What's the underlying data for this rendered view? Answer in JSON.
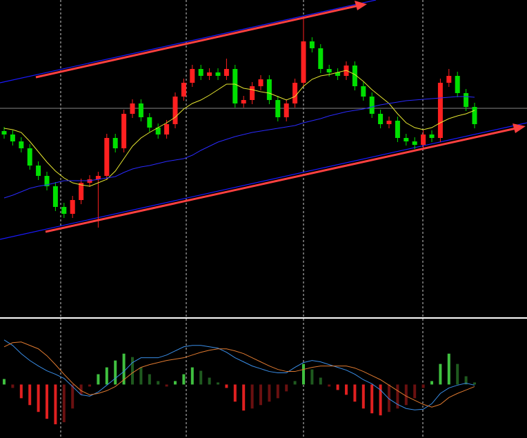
{
  "chart_data": [
    {
      "type": "candlestick",
      "ylim": [
        0,
        460
      ],
      "up_color": "#ff2020",
      "down_color": "#00e000",
      "ohlc": [
        [
          270,
          276,
          259,
          265
        ],
        [
          265,
          271,
          249,
          255
        ],
        [
          255,
          261,
          239,
          245
        ],
        [
          245,
          251,
          214,
          220
        ],
        [
          220,
          226,
          199,
          205
        ],
        [
          205,
          211,
          184,
          190
        ],
        [
          190,
          196,
          154,
          160
        ],
        [
          160,
          166,
          144,
          150
        ],
        [
          150,
          176,
          144,
          170
        ],
        [
          170,
          201,
          164,
          195
        ],
        [
          195,
          206,
          189,
          200
        ],
        [
          200,
          211,
          130,
          205
        ],
        [
          205,
          266,
          199,
          260
        ],
        [
          260,
          266,
          239,
          245
        ],
        [
          245,
          301,
          239,
          295
        ],
        [
          295,
          316,
          289,
          310
        ],
        [
          310,
          316,
          284,
          290
        ],
        [
          290,
          296,
          269,
          275
        ],
        [
          275,
          281,
          259,
          265
        ],
        [
          265,
          286,
          259,
          280
        ],
        [
          280,
          326,
          274,
          320
        ],
        [
          320,
          346,
          314,
          340
        ],
        [
          340,
          366,
          334,
          360
        ],
        [
          360,
          366,
          344,
          350
        ],
        [
          350,
          361,
          344,
          355
        ],
        [
          355,
          361,
          344,
          350
        ],
        [
          350,
          375,
          344,
          360
        ],
        [
          360,
          366,
          304,
          310
        ],
        [
          310,
          321,
          304,
          315
        ],
        [
          315,
          341,
          309,
          335
        ],
        [
          335,
          351,
          329,
          345
        ],
        [
          345,
          351,
          309,
          315
        ],
        [
          315,
          321,
          284,
          290
        ],
        [
          290,
          316,
          284,
          310
        ],
        [
          310,
          346,
          304,
          340
        ],
        [
          340,
          435,
          334,
          400
        ],
        [
          400,
          406,
          384,
          390
        ],
        [
          390,
          396,
          354,
          360
        ],
        [
          360,
          366,
          349,
          355
        ],
        [
          355,
          361,
          344,
          350
        ],
        [
          350,
          371,
          344,
          365
        ],
        [
          365,
          371,
          329,
          335
        ],
        [
          335,
          341,
          314,
          320
        ],
        [
          320,
          326,
          289,
          295
        ],
        [
          295,
          301,
          274,
          280
        ],
        [
          280,
          291,
          274,
          285
        ],
        [
          285,
          291,
          254,
          260
        ],
        [
          260,
          266,
          249,
          255
        ],
        [
          255,
          261,
          244,
          250
        ],
        [
          250,
          271,
          244,
          265
        ],
        [
          265,
          271,
          254,
          260
        ],
        [
          260,
          346,
          254,
          340
        ],
        [
          340,
          360,
          334,
          350
        ],
        [
          350,
          356,
          319,
          325
        ],
        [
          325,
          331,
          299,
          305
        ],
        [
          305,
          311,
          274,
          280
        ]
      ],
      "series": [
        {
          "color": "#e8e830",
          "values": [
            274,
            272,
            268,
            255,
            240,
            225,
            212,
            202,
            195,
            192,
            190,
            195,
            200,
            212,
            230,
            248,
            260,
            268,
            275,
            282,
            290,
            302,
            310,
            315,
            322,
            330,
            338,
            338,
            332,
            330,
            327,
            325,
            320,
            315,
            320,
            335,
            345,
            350,
            352,
            355,
            358,
            352,
            342,
            330,
            320,
            310,
            295,
            282,
            275,
            272,
            275,
            282,
            288,
            292,
            295,
            300
          ]
        },
        {
          "color": "#2a2aff",
          "values": [
            173,
            177,
            182,
            187,
            190,
            192,
            195,
            198,
            198,
            198,
            198,
            200,
            202,
            204,
            210,
            215,
            218,
            220,
            223,
            226,
            228,
            230,
            235,
            242,
            248,
            254,
            258,
            262,
            265,
            268,
            270,
            272,
            274,
            276,
            278,
            282,
            285,
            288,
            292,
            295,
            298,
            300,
            302,
            305,
            308,
            310,
            312,
            314,
            315,
            316,
            317,
            318,
            319,
            320,
            320,
            319
          ]
        }
      ]
    },
    {
      "type": "macd",
      "ylim": [
        -78,
        96
      ],
      "histogram": {
        "pos_color": "#40c040",
        "pos_fade_color": "#1f5a1f",
        "neg_color": "#e02020",
        "neg_fade_color": "#6a1010",
        "values": [
          8,
          -5,
          -20,
          -30,
          -40,
          -50,
          -58,
          -55,
          -35,
          -15,
          -3,
          15,
          25,
          35,
          45,
          40,
          25,
          15,
          5,
          -3,
          5,
          15,
          25,
          20,
          10,
          3,
          -5,
          -25,
          -38,
          -35,
          -30,
          -25,
          -20,
          -10,
          5,
          30,
          22,
          10,
          -3,
          -8,
          -15,
          -25,
          -35,
          -42,
          -45,
          -40,
          -35,
          -30,
          -20,
          -5,
          5,
          30,
          45,
          30,
          12,
          3
        ]
      },
      "series": [
        {
          "color": "#3a8ee8",
          "values": [
            65,
            57,
            45,
            35,
            27,
            20,
            15,
            9,
            -3,
            -15,
            -17,
            -11,
            -1,
            9,
            19,
            32,
            39,
            39,
            39,
            43,
            49,
            55,
            57,
            57,
            55,
            53,
            47,
            39,
            33,
            27,
            23,
            19,
            17,
            17,
            25,
            32,
            35,
            33,
            29,
            25,
            21,
            15,
            7,
            1,
            -8,
            -21,
            -29,
            -35,
            -37,
            -36,
            -28,
            -13,
            -5,
            -1,
            2,
            -1
          ]
        },
        {
          "color": "#e07a30",
          "values": [
            55,
            61,
            62,
            57,
            52,
            42,
            29,
            15,
            2,
            -9,
            -15,
            -13,
            -9,
            -3,
            7,
            17,
            25,
            29,
            32,
            35,
            37,
            39,
            43,
            47,
            50,
            52,
            52,
            49,
            45,
            39,
            33,
            27,
            22,
            19,
            19,
            22,
            25,
            27,
            27,
            27,
            27,
            24,
            19,
            13,
            7,
            -1,
            -9,
            -17,
            -23,
            -29,
            -33,
            -29,
            -19,
            -13,
            -8,
            -3
          ]
        }
      ]
    }
  ]
}
